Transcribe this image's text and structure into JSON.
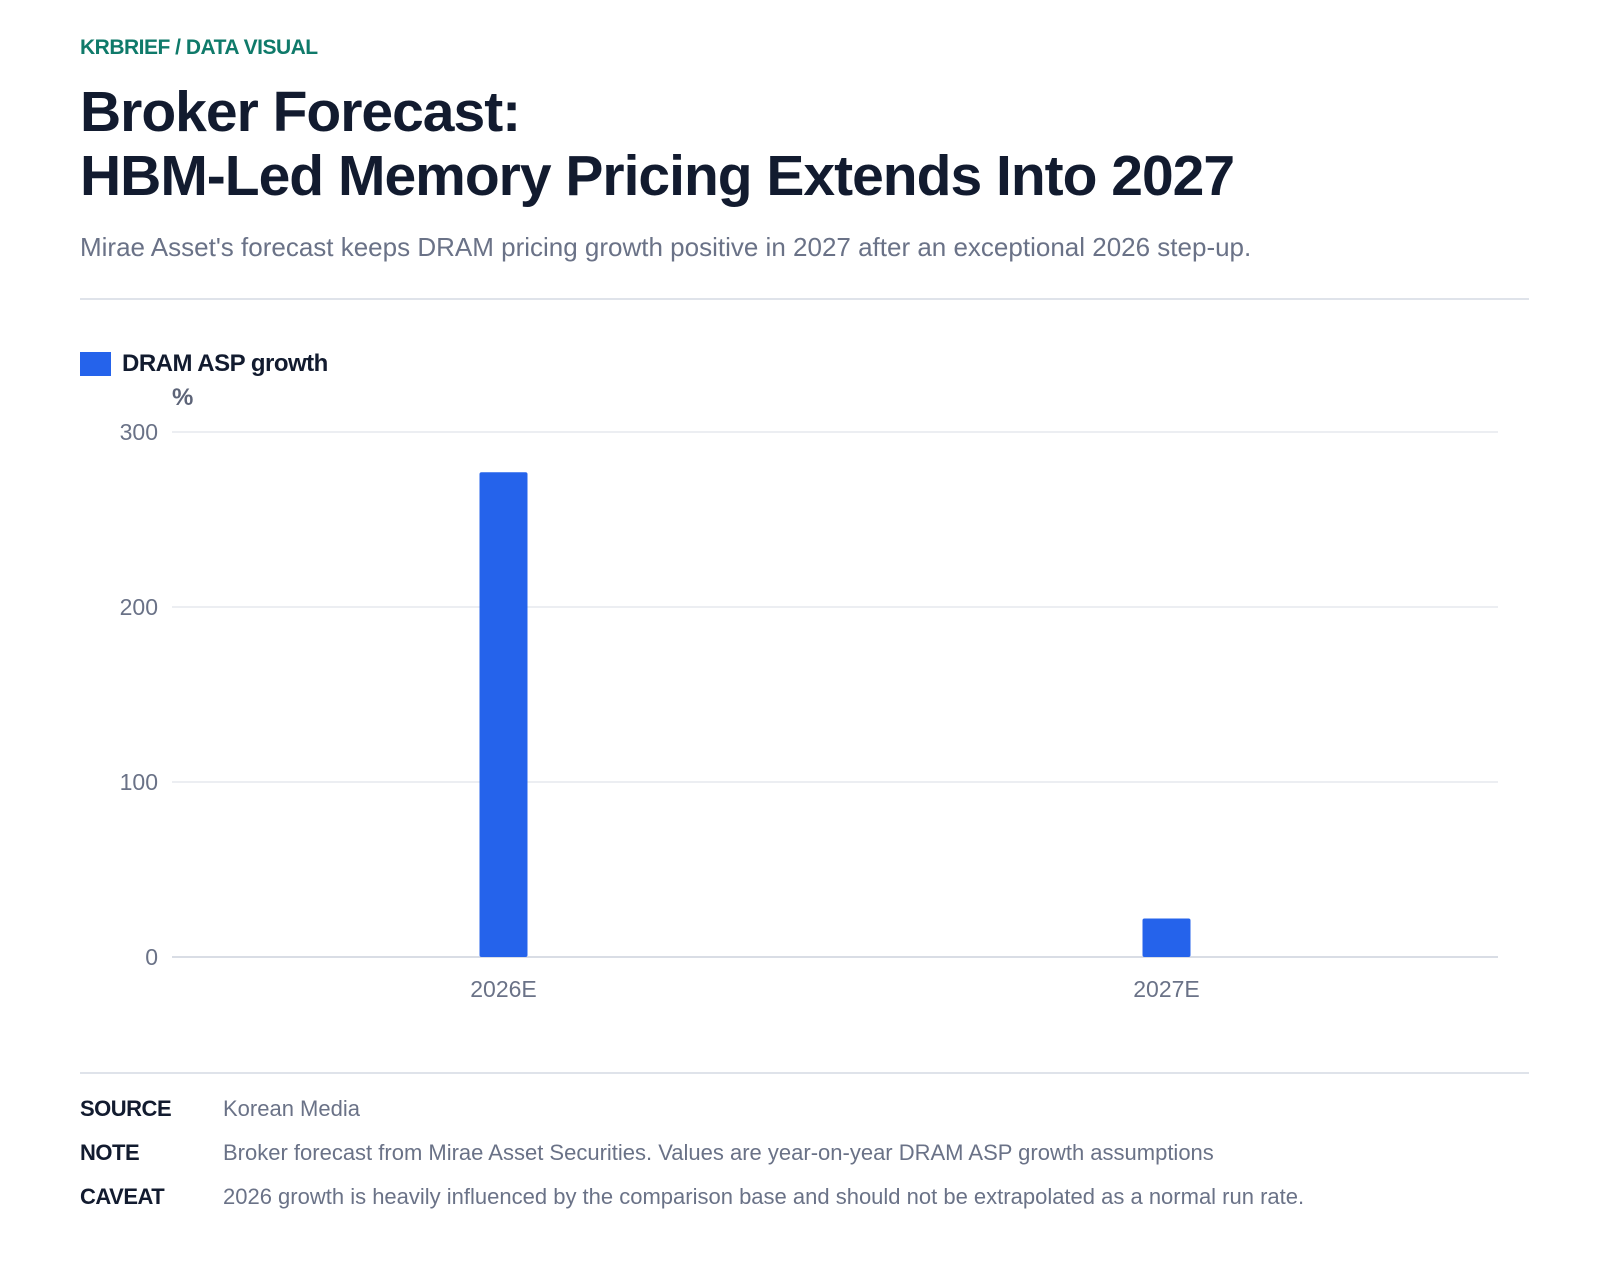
{
  "header": {
    "kicker": "KRBRIEF / DATA VISUAL",
    "title_line1": "Broker Forecast:",
    "title_line2": "HBM-Led Memory Pricing Extends Into 2027",
    "subtitle": "Mirae Asset's forecast keeps DRAM pricing growth positive in 2027 after an exceptional 2026 step-up."
  },
  "chart_data": {
    "type": "bar",
    "categories": [
      "2026E",
      "2027E"
    ],
    "series": [
      {
        "name": "DRAM ASP growth",
        "values": [
          277,
          22
        ],
        "color": "#2563eb"
      }
    ],
    "ylabel": "%",
    "ylim": [
      0,
      300
    ],
    "yticks": [
      0,
      100,
      200,
      300
    ],
    "grid": true,
    "legend": "top-left"
  },
  "footer": {
    "rows": [
      {
        "key": "SOURCE",
        "value": "Korean Media"
      },
      {
        "key": "NOTE",
        "value": "Broker forecast from Mirae Asset Securities. Values are year-on-year DRAM ASP growth assumptions"
      },
      {
        "key": "CAVEAT",
        "value": "2026 growth is heavily influenced by the comparison base and should not be extrapolated as a normal run rate."
      }
    ]
  }
}
